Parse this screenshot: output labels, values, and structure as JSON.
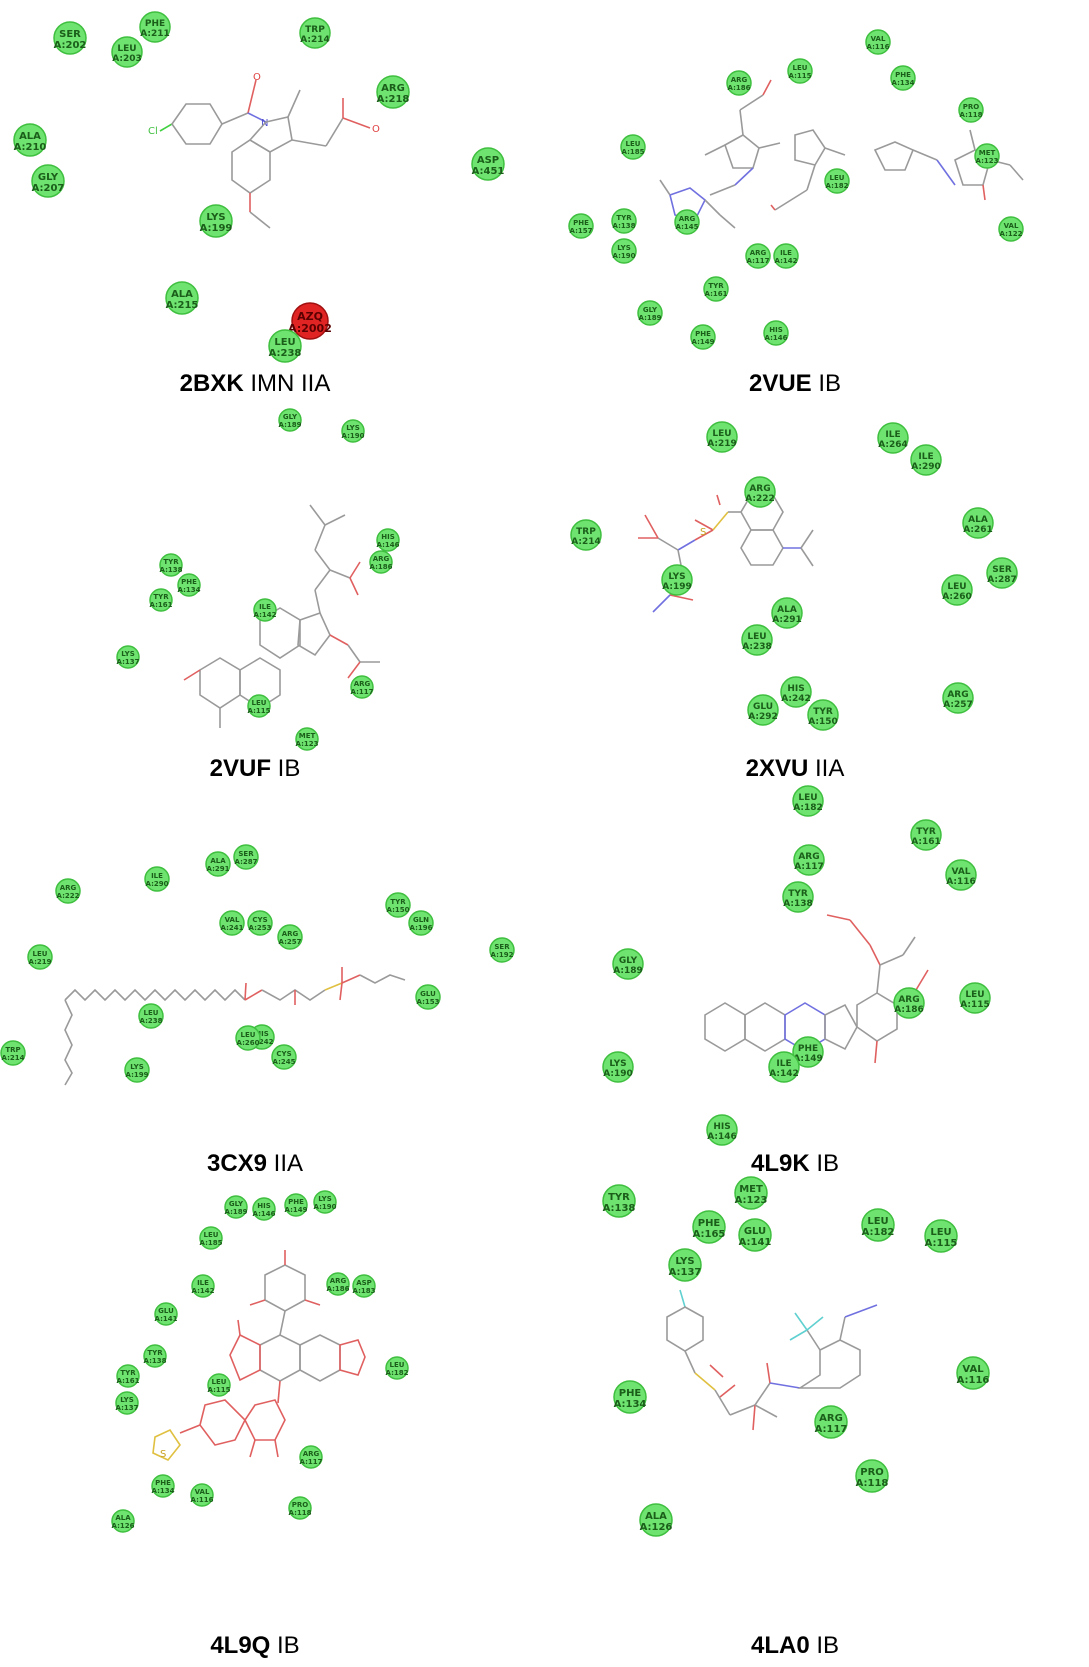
{
  "colors": {
    "residue_fill": "#6fe36f",
    "residue_stroke": "#3fbf3f",
    "ligand_residue_fill": "#e02424"
  },
  "panels": [
    {
      "code": "2BXK",
      "suffix": " IMN IIA",
      "residues": [
        {
          "name": "SER",
          "id": "A:202"
        },
        {
          "name": "PHE",
          "id": "A:211"
        },
        {
          "name": "LEU",
          "id": "A:203"
        },
        {
          "name": "TRP",
          "id": "A:214"
        },
        {
          "name": "ARG",
          "id": "A:218"
        },
        {
          "name": "ALA",
          "id": "A:210"
        },
        {
          "name": "GLY",
          "id": "A:207"
        },
        {
          "name": "ASP",
          "id": "A:451"
        },
        {
          "name": "LYS",
          "id": "A:199"
        },
        {
          "name": "ALA",
          "id": "A:215"
        },
        {
          "name": "AZQ",
          "id": "A:2002"
        },
        {
          "name": "LEU",
          "id": "A:238"
        }
      ]
    },
    {
      "code": "2VUE",
      "suffix": " IB",
      "residues": [
        {
          "name": "VAL",
          "id": "A:116"
        },
        {
          "name": "LEU",
          "id": "A:115"
        },
        {
          "name": "PHE",
          "id": "A:134"
        },
        {
          "name": "ARG",
          "id": "A:186"
        },
        {
          "name": "PRO",
          "id": "A:118"
        },
        {
          "name": "LEU",
          "id": "A:185"
        },
        {
          "name": "MET",
          "id": "A:123"
        },
        {
          "name": "LEU",
          "id": "A:182"
        },
        {
          "name": "PHE",
          "id": "A:157"
        },
        {
          "name": "TYR",
          "id": "A:138"
        },
        {
          "name": "ARG",
          "id": "A:145"
        },
        {
          "name": "VAL",
          "id": "A:122"
        },
        {
          "name": "LYS",
          "id": "A:190"
        },
        {
          "name": "ARG",
          "id": "A:117"
        },
        {
          "name": "ILE",
          "id": "A:142"
        },
        {
          "name": "TYR",
          "id": "A:161"
        },
        {
          "name": "GLY",
          "id": "A:189"
        },
        {
          "name": "PHE",
          "id": "A:149"
        },
        {
          "name": "HIS",
          "id": "A:146"
        }
      ]
    },
    {
      "code": "2VUF",
      "suffix": " IB",
      "residues": [
        {
          "name": "GLY",
          "id": "A:189"
        },
        {
          "name": "LYS",
          "id": "A:190"
        },
        {
          "name": "HIS",
          "id": "A:146"
        },
        {
          "name": "ARG",
          "id": "A:186"
        },
        {
          "name": "TYR",
          "id": "A:138"
        },
        {
          "name": "PHE",
          "id": "A:134"
        },
        {
          "name": "ILE",
          "id": "A:142"
        },
        {
          "name": "TYR",
          "id": "A:161"
        },
        {
          "name": "LYS",
          "id": "A:137"
        },
        {
          "name": "ARG",
          "id": "A:117"
        },
        {
          "name": "LEU",
          "id": "A:115"
        },
        {
          "name": "MET",
          "id": "A:123"
        }
      ]
    },
    {
      "code": "2XVU",
      "suffix": " IIA",
      "residues": [
        {
          "name": "LEU",
          "id": "A:219"
        },
        {
          "name": "ILE",
          "id": "A:264"
        },
        {
          "name": "ILE",
          "id": "A:290"
        },
        {
          "name": "ARG",
          "id": "A:222"
        },
        {
          "name": "TRP",
          "id": "A:214"
        },
        {
          "name": "ALA",
          "id": "A:261"
        },
        {
          "name": "SER",
          "id": "A:287"
        },
        {
          "name": "LYS",
          "id": "A:199"
        },
        {
          "name": "LEU",
          "id": "A:260"
        },
        {
          "name": "ALA",
          "id": "A:291"
        },
        {
          "name": "LEU",
          "id": "A:238"
        },
        {
          "name": "HIS",
          "id": "A:242"
        },
        {
          "name": "GLU",
          "id": "A:292"
        },
        {
          "name": "TYR",
          "id": "A:150"
        },
        {
          "name": "ARG",
          "id": "A:257"
        }
      ]
    },
    {
      "code": "3CX9",
      "suffix": " IIA",
      "residues": [
        {
          "name": "ILE",
          "id": "A:290"
        },
        {
          "name": "ALA",
          "id": "A:291"
        },
        {
          "name": "SER",
          "id": "A:287"
        },
        {
          "name": "ARG",
          "id": "A:222"
        },
        {
          "name": "VAL",
          "id": "A:241"
        },
        {
          "name": "CYS",
          "id": "A:253"
        },
        {
          "name": "TYR",
          "id": "A:150"
        },
        {
          "name": "GLN",
          "id": "A:196"
        },
        {
          "name": "ARG",
          "id": "A:257"
        },
        {
          "name": "SER",
          "id": "A:192"
        },
        {
          "name": "LEU",
          "id": "A:219"
        },
        {
          "name": "GLU",
          "id": "A:153"
        },
        {
          "name": "LEU",
          "id": "A:238"
        },
        {
          "name": "HIS",
          "id": "A:242"
        },
        {
          "name": "CYS",
          "id": "A:245"
        },
        {
          "name": "LEU",
          "id": "A:260"
        },
        {
          "name": "TRP",
          "id": "A:214"
        },
        {
          "name": "LYS",
          "id": "A:199"
        }
      ]
    },
    {
      "code": "4L9K",
      "suffix": " IB",
      "residues": [
        {
          "name": "LEU",
          "id": "A:182"
        },
        {
          "name": "TYR",
          "id": "A:161"
        },
        {
          "name": "ARG",
          "id": "A:117"
        },
        {
          "name": "VAL",
          "id": "A:116"
        },
        {
          "name": "TYR",
          "id": "A:138"
        },
        {
          "name": "GLY",
          "id": "A:189"
        },
        {
          "name": "ARG",
          "id": "A:186"
        },
        {
          "name": "LEU",
          "id": "A:115"
        },
        {
          "name": "PHE",
          "id": "A:149"
        },
        {
          "name": "ILE",
          "id": "A:142"
        },
        {
          "name": "LYS",
          "id": "A:190"
        },
        {
          "name": "HIS",
          "id": "A:146"
        }
      ]
    },
    {
      "code": "4L9Q",
      "suffix": " IB",
      "residues": [
        {
          "name": "GLY",
          "id": "A:189"
        },
        {
          "name": "HIS",
          "id": "A:146"
        },
        {
          "name": "PHE",
          "id": "A:149"
        },
        {
          "name": "LYS",
          "id": "A:190"
        },
        {
          "name": "LEU",
          "id": "A:185"
        },
        {
          "name": "ARG",
          "id": "A:186"
        },
        {
          "name": "ASP",
          "id": "A:183"
        },
        {
          "name": "ILE",
          "id": "A:142"
        },
        {
          "name": "GLU",
          "id": "A:141"
        },
        {
          "name": "LEU",
          "id": "A:182"
        },
        {
          "name": "TYR",
          "id": "A:138"
        },
        {
          "name": "TYR",
          "id": "A:161"
        },
        {
          "name": "LEU",
          "id": "A:115"
        },
        {
          "name": "LYS",
          "id": "A:137"
        },
        {
          "name": "ARG",
          "id": "A:117"
        },
        {
          "name": "PHE",
          "id": "A:134"
        },
        {
          "name": "VAL",
          "id": "A:116"
        },
        {
          "name": "PRO",
          "id": "A:118"
        },
        {
          "name": "ALA",
          "id": "A:126"
        }
      ]
    },
    {
      "code": "4LA0",
      "suffix": " IB",
      "residues": [
        {
          "name": "TYR",
          "id": "A:138"
        },
        {
          "name": "MET",
          "id": "A:123"
        },
        {
          "name": "PHE",
          "id": "A:165"
        },
        {
          "name": "GLU",
          "id": "A:141"
        },
        {
          "name": "LEU",
          "id": "A:182"
        },
        {
          "name": "LEU",
          "id": "A:115"
        },
        {
          "name": "LYS",
          "id": "A:137"
        },
        {
          "name": "PHE",
          "id": "A:134"
        },
        {
          "name": "VAL",
          "id": "A:116"
        },
        {
          "name": "ARG",
          "id": "A:117"
        },
        {
          "name": "PRO",
          "id": "A:118"
        },
        {
          "name": "ALA",
          "id": "A:126"
        }
      ]
    }
  ]
}
